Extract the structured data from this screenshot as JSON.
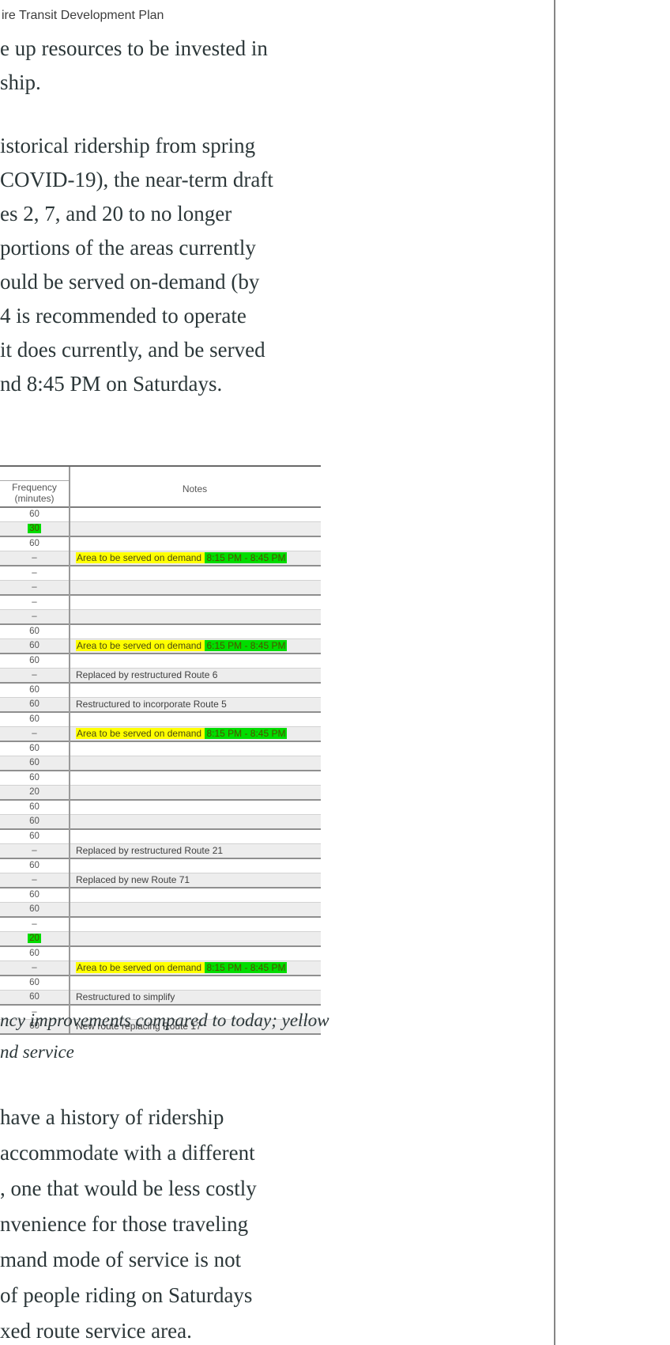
{
  "header": {
    "title": "ire Transit Development Plan"
  },
  "paragraphs": {
    "p1": [
      "e up resources to be invested in",
      "ship."
    ],
    "p2": [
      "istorical ridership from spring",
      "COVID-19), the near-term draft",
      "es 2, 7, and 20 to no longer",
      "portions of the areas currently",
      "ould be served on-demand (by",
      "4 is recommended to operate",
      "it does currently, and be served",
      "nd 8:45 PM on Saturdays."
    ],
    "p3": [
      "have a history of ridership",
      "accommodate with a different",
      ", one that would be less costly",
      "nvenience for those traveling",
      "mand mode of service is not",
      " of people riding on Saturdays",
      "xed route service area."
    ]
  },
  "caption": [
    "ncy improvements compared to today; yellow",
    "nd service"
  ],
  "table": {
    "headers": {
      "frequency_line1": "Frequency",
      "frequency_line2": "(minutes)",
      "notes": "Notes"
    },
    "rows": [
      {
        "freq": "60"
      },
      {
        "freq": "30",
        "freqGreen": true
      },
      {
        "freq": "60"
      },
      {
        "freq": "–",
        "noteYellow": "Area to be served on demand",
        "noteTime": "8:15 PM - 8:45 PM"
      },
      {
        "freq": "–"
      },
      {
        "freq": "–"
      },
      {
        "freq": "–"
      },
      {
        "freq": "–"
      },
      {
        "freq": "60"
      },
      {
        "freq": "60",
        "noteYellow": "Area to be served on demand",
        "noteTime": "6:15 PM - 8:45 PM"
      },
      {
        "freq": "60"
      },
      {
        "freq": "–",
        "note": "Replaced by restructured Route 6"
      },
      {
        "freq": "60"
      },
      {
        "freq": "60",
        "note": "Restructured to incorporate Route 5"
      },
      {
        "freq": "60"
      },
      {
        "freq": "–",
        "noteYellow": "Area to be served on demand",
        "noteTime": "8:15 PM - 8:45 PM"
      },
      {
        "freq": "60"
      },
      {
        "freq": "60"
      },
      {
        "freq": "60"
      },
      {
        "freq": "20"
      },
      {
        "freq": "60"
      },
      {
        "freq": "60"
      },
      {
        "freq": "60"
      },
      {
        "freq": "–",
        "note": "Replaced by restructured Route 21"
      },
      {
        "freq": "60"
      },
      {
        "freq": "–",
        "note": "Replaced by new Route 71"
      },
      {
        "freq": "60"
      },
      {
        "freq": "60"
      },
      {
        "freq": "–"
      },
      {
        "freq": "20",
        "freqGreen": true
      },
      {
        "freq": "60"
      },
      {
        "freq": "–",
        "noteYellow": "Area to be served on demand",
        "noteTime": "8:15 PM - 8:45 PM"
      },
      {
        "freq": "60"
      },
      {
        "freq": "60",
        "note": "Restructured to simplify"
      },
      {
        "freq": "–"
      },
      {
        "freq": "60",
        "note": "New route replacing Route 17"
      }
    ]
  },
  "colors": {
    "green_highlight": "#00dd00",
    "yellow_highlight": "#ffff00",
    "body_text": "#2c3739"
  }
}
